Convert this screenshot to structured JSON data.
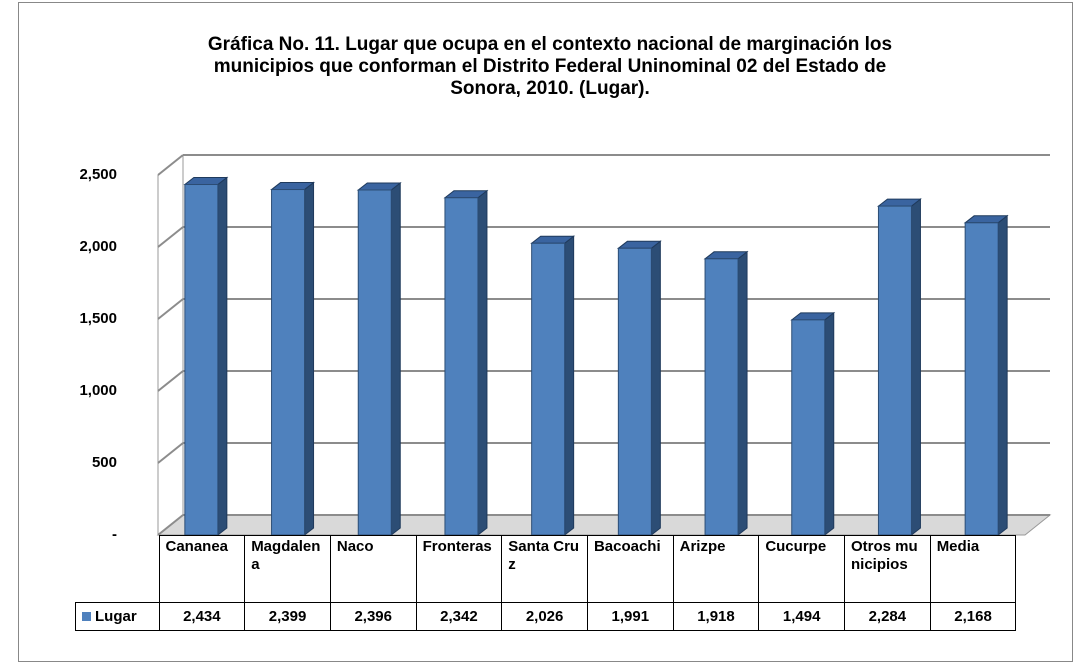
{
  "chart_data": {
    "type": "bar",
    "title": "Gráfica No. 11. Lugar que ocupa en el contexto nacional de marginación los municipios que conforman el Distrito Federal Uninominal 02 del Estado de Sonora, 2010. (Lugar).",
    "categories": [
      "Cananea",
      "Magdalena",
      "Naco",
      "Fronteras",
      "Santa Cruz",
      "Bacoachi",
      "Arizpe",
      "Cucurpe",
      "Otros municipios",
      "Media"
    ],
    "series": [
      {
        "name": "Lugar",
        "color": "#4f81bd",
        "values": [
          2434,
          2399,
          2396,
          2342,
          2026,
          1991,
          1918,
          1494,
          2284,
          2168
        ],
        "value_labels": [
          "2,434",
          "2,399",
          "2,396",
          "2,342",
          "2,026",
          "1,991",
          "1,918",
          "1,494",
          "2,284",
          "2,168"
        ]
      }
    ],
    "ylim": [
      0,
      2500
    ],
    "yticks": [
      {
        "value": 0,
        "label": "-"
      },
      500,
      {
        "value": 1000,
        "label": "1,000"
      },
      {
        "value": 1500,
        "label": "1,500"
      },
      {
        "value": 2000,
        "label": "2,000"
      },
      {
        "value": 2500,
        "label": "2,500"
      }
    ],
    "grid": true
  }
}
